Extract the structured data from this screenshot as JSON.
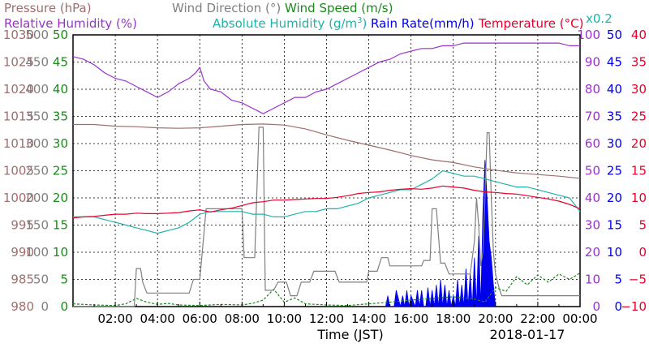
{
  "chart_data": {
    "type": "line",
    "title": "",
    "xlabel": "Time (JST)",
    "date_label": "2018-01-17",
    "x_ticks": [
      "02:00",
      "04:00",
      "06:00",
      "08:00",
      "10:00",
      "12:00",
      "14:00",
      "16:00",
      "18:00",
      "20:00",
      "22:00",
      "00:00"
    ],
    "x_range_hours": [
      0,
      24
    ],
    "grid": true,
    "legend": [
      {
        "key": "pressure",
        "text": "Pressure (hPa)",
        "color": "#a06e6e"
      },
      {
        "key": "wind_dir",
        "text": "Wind Direction (°)",
        "color": "#808080"
      },
      {
        "key": "wind_speed",
        "text": "Wind Speed (m/s)",
        "color": "#1a8a1a"
      },
      {
        "key": "rh",
        "text": "Relative Humidity (%)",
        "color": "#9932cc"
      },
      {
        "key": "abs_hum",
        "text": "Absolute Humidity (g/m",
        "sup": "3",
        "close": ")",
        "color": "#20b2aa"
      },
      {
        "key": "rain",
        "text": "Rain Rate(mm/h)",
        "color": "#0000ee"
      },
      {
        "key": "temp",
        "text": "Temperature (°C)",
        "color": "#e8002a"
      },
      {
        "key": "x02",
        "text": "x0.2",
        "color": "#20b2aa"
      }
    ],
    "axes": {
      "pressure": {
        "min": 980,
        "max": 1030,
        "ticks": [
          "980",
          "985",
          "990",
          "995",
          "1000",
          "1005",
          "1010",
          "1015",
          "1020",
          "1025",
          "1030"
        ],
        "color": "#a06e6e"
      },
      "wind_dir": {
        "min": 0,
        "max": 500,
        "ticks": [
          "0",
          "50",
          "100",
          "150",
          "200",
          "250",
          "300",
          "350",
          "400",
          "450",
          "500"
        ],
        "color": "#808080"
      },
      "wind_speed": {
        "min": 0,
        "max": 50,
        "ticks": [
          "0",
          "5",
          "10",
          "15",
          "20",
          "25",
          "30",
          "35",
          "40",
          "45",
          "50"
        ],
        "color": "#1a8a1a"
      },
      "rh": {
        "min": 0,
        "max": 100,
        "ticks": [
          "0",
          "10",
          "20",
          "30",
          "40",
          "50",
          "60",
          "70",
          "80",
          "90",
          "100"
        ],
        "color": "#9932cc"
      },
      "rain": {
        "min": 0,
        "max": 50,
        "ticks": [
          "0",
          "5",
          "10",
          "15",
          "20",
          "25",
          "30",
          "35",
          "40",
          "45",
          "50"
        ],
        "color": "#0000ee"
      },
      "temp": {
        "min": -10,
        "max": 40,
        "ticks": [
          "−10",
          "−5",
          "0",
          "5",
          "10",
          "15",
          "20",
          "25",
          "30",
          "35",
          "40"
        ],
        "color": "#e8002a"
      }
    },
    "series": [
      {
        "name": "Pressure (hPa)",
        "axis": "pressure",
        "color": "#a06e6e",
        "x": [
          0,
          1,
          2,
          3,
          4,
          5,
          6,
          7,
          8,
          9,
          10,
          11,
          12,
          13,
          14,
          15,
          16,
          17,
          18,
          19,
          20,
          21,
          22,
          23,
          24
        ],
        "values": [
          1013.5,
          1013.5,
          1013.2,
          1013.1,
          1012.9,
          1012.8,
          1012.9,
          1013.2,
          1013.5,
          1013.6,
          1013.4,
          1012.7,
          1011.6,
          1010.6,
          1009.7,
          1008.8,
          1007.8,
          1007.0,
          1006.5,
          1005.7,
          1005.1,
          1004.6,
          1004.3,
          1004.0,
          1003.6
        ]
      },
      {
        "name": "Wind Direction (°)",
        "axis": "wind_dir",
        "color": "#808080",
        "x": [
          0,
          2.9,
          3.0,
          3.2,
          3.3,
          3.5,
          5.5,
          5.7,
          6.0,
          6.3,
          6.4,
          8.0,
          8.1,
          8.6,
          8.8,
          9.0,
          9.1,
          9.5,
          9.7,
          10.1,
          10.3,
          10.6,
          10.8,
          11.2,
          11.4,
          12.4,
          12.6,
          12.9,
          13.1,
          13.9,
          14.0,
          14.4,
          14.6,
          14.9,
          15.0,
          16.5,
          16.6,
          16.9,
          17.0,
          17.2,
          17.4,
          17.6,
          17.8,
          18.1,
          18.2,
          18.8,
          19.0,
          19.1,
          19.2,
          19.3,
          19.4,
          19.5,
          19.6,
          19.7,
          19.8,
          19.9,
          20.0,
          20.2,
          20.3,
          20.5,
          20.7,
          20.9,
          21.0,
          21.1,
          21.2,
          21.4,
          21.6,
          21.8,
          22.0,
          22.2,
          22.4,
          22.5,
          22.7,
          22.9,
          23.1,
          23.3,
          23.5,
          23.7,
          24.0
        ],
        "values": [
          0,
          0,
          70,
          70,
          45,
          25,
          25,
          50,
          50,
          180,
          180,
          180,
          90,
          90,
          330,
          330,
          30,
          30,
          45,
          45,
          20,
          20,
          45,
          45,
          65,
          65,
          45,
          45,
          45,
          45,
          65,
          65,
          90,
          90,
          75,
          75,
          85,
          85,
          180,
          180,
          80,
          80,
          60,
          60,
          60,
          60,
          120,
          200,
          150,
          75,
          100,
          200,
          320,
          320,
          200,
          100,
          60,
          30,
          20,
          20,
          20,
          20,
          20,
          20,
          20,
          20,
          20,
          20,
          20,
          20,
          20,
          20,
          20,
          20,
          20,
          20,
          20,
          20,
          20
        ]
      },
      {
        "name": "Wind Speed (m/s)",
        "axis": "wind_speed",
        "color": "#1a8a1a",
        "x": [
          0,
          1,
          2,
          2.5,
          3,
          3.5,
          4,
          4.5,
          5,
          6,
          7,
          8,
          8.5,
          9,
          9.5,
          10,
          10.5,
          11,
          12,
          13,
          14,
          15,
          16,
          17,
          18,
          19,
          19.5,
          20,
          20.5,
          21,
          21.5,
          22,
          22.5,
          23,
          23.5,
          24
        ],
        "values": [
          0.5,
          0.3,
          0.2,
          0.5,
          1.5,
          0.8,
          0.4,
          0.6,
          0.3,
          0.2,
          0.4,
          0.3,
          0.6,
          1.2,
          3.2,
          0.8,
          1.6,
          0.5,
          0.3,
          0.2,
          0.5,
          0.8,
          1.2,
          1.5,
          1.8,
          1.4,
          0.8,
          3.5,
          2.8,
          5.5,
          4.0,
          5.8,
          4.5,
          6.0,
          5.0,
          6.2
        ]
      },
      {
        "name": "Relative Humidity (%)",
        "axis": "rh",
        "color": "#9932cc",
        "x": [
          0,
          0.5,
          1,
          1.5,
          2,
          2.5,
          3,
          3.5,
          4,
          4.5,
          5,
          5.5,
          5.8,
          6.0,
          6.2,
          6.5,
          7,
          7.5,
          8,
          8.5,
          9,
          9.5,
          10,
          10.5,
          11,
          11.5,
          12,
          12.5,
          13,
          13.5,
          14,
          14.5,
          15,
          15.5,
          16,
          16.5,
          17,
          17.5,
          18,
          18.5,
          19,
          19.5,
          20,
          20.5,
          21,
          21.5,
          22,
          22.5,
          23,
          23.5,
          24
        ],
        "values": [
          92,
          91,
          89,
          86,
          84,
          83,
          81,
          79,
          77,
          79,
          82,
          84,
          86,
          88,
          83,
          80,
          79,
          76,
          75,
          73,
          71,
          73,
          75,
          77,
          77,
          79,
          80,
          82,
          84,
          86,
          88,
          90,
          91,
          93,
          94,
          95,
          95,
          96,
          96,
          97,
          97,
          97,
          97,
          97,
          97,
          97,
          97,
          97,
          97,
          96,
          96
        ]
      },
      {
        "name": "Absolute Humidity (g/m3)",
        "axis": "rh",
        "color": "#20b2aa",
        "x": [
          0,
          0.5,
          1,
          1.5,
          2,
          2.5,
          3,
          3.5,
          4,
          4.5,
          5,
          5.5,
          6,
          6.5,
          7,
          7.5,
          8,
          8.5,
          9,
          9.5,
          10,
          10.5,
          11,
          11.5,
          12,
          12.5,
          13,
          13.5,
          14,
          14.5,
          15,
          15.5,
          16,
          16.5,
          17,
          17.5,
          18,
          18.5,
          19,
          19.5,
          20,
          20.5,
          21,
          21.5,
          22,
          22.5,
          23,
          23.5,
          24
        ],
        "values": [
          33,
          33,
          33,
          32,
          31,
          30,
          29,
          28,
          27,
          28,
          29,
          31,
          34,
          35,
          35,
          35,
          35,
          34,
          34,
          33,
          33,
          34,
          35,
          35,
          36,
          36,
          37,
          38,
          40,
          41,
          42,
          43,
          43,
          45,
          47,
          50,
          49,
          48,
          48,
          47,
          46,
          45,
          44,
          44,
          43,
          42,
          41,
          40,
          35
        ]
      },
      {
        "name": "Temperature (°C)",
        "axis": "temp",
        "color": "#e8002a",
        "x": [
          0,
          0.5,
          1,
          1.5,
          2,
          2.5,
          3,
          3.5,
          4,
          4.5,
          5,
          5.5,
          6,
          6.5,
          7,
          7.5,
          8,
          8.5,
          9,
          9.5,
          10,
          10.5,
          11,
          11.5,
          12,
          12.5,
          13,
          13.5,
          14,
          14.5,
          15,
          15.5,
          16,
          16.5,
          17,
          17.5,
          18,
          18.5,
          19,
          19.5,
          20,
          20.5,
          21,
          21.5,
          22,
          22.5,
          23,
          23.5,
          24
        ],
        "values": [
          6.3,
          6.5,
          6.6,
          6.8,
          7.0,
          7.0,
          7.2,
          7.1,
          7.1,
          7.2,
          7.3,
          7.6,
          7.8,
          7.4,
          7.8,
          8.1,
          8.6,
          9.1,
          9.3,
          9.6,
          9.6,
          9.7,
          9.8,
          9.9,
          9.9,
          10.1,
          10.4,
          10.8,
          11.0,
          11.1,
          11.4,
          11.6,
          11.7,
          11.6,
          11.8,
          12.2,
          12.0,
          11.8,
          11.4,
          11.1,
          11.0,
          10.8,
          10.7,
          10.4,
          10.1,
          9.8,
          9.4,
          8.8,
          8.0
        ]
      },
      {
        "name": "Rain Rate(mm/h)",
        "axis": "rain",
        "type": "area",
        "color": "#0000ee",
        "x": [
          14.8,
          14.9,
          15.0,
          15.2,
          15.3,
          15.5,
          15.6,
          15.7,
          15.8,
          15.9,
          16.0,
          16.2,
          16.3,
          16.4,
          16.5,
          16.6,
          16.7,
          16.8,
          16.9,
          17.0,
          17.1,
          17.2,
          17.3,
          17.4,
          17.5,
          17.6,
          17.7,
          17.8,
          17.9,
          18.0,
          18.1,
          18.2,
          18.3,
          18.4,
          18.5,
          18.6,
          18.7,
          18.8,
          18.9,
          19.0,
          19.1,
          19.2,
          19.3,
          19.4,
          19.5,
          19.6,
          19.7,
          19.8,
          19.9,
          20.0
        ],
        "values": [
          0,
          2,
          0,
          0,
          3,
          0,
          2,
          0,
          3,
          0,
          2,
          0,
          3,
          0,
          3,
          0,
          0,
          3.5,
          0,
          3,
          0,
          4,
          0,
          5,
          0,
          4,
          0,
          3,
          0,
          2,
          0,
          5,
          0,
          4,
          0,
          7,
          0,
          6,
          0,
          9,
          0,
          13,
          0,
          17,
          27,
          20,
          12,
          9,
          4,
          0
        ]
      }
    ]
  }
}
